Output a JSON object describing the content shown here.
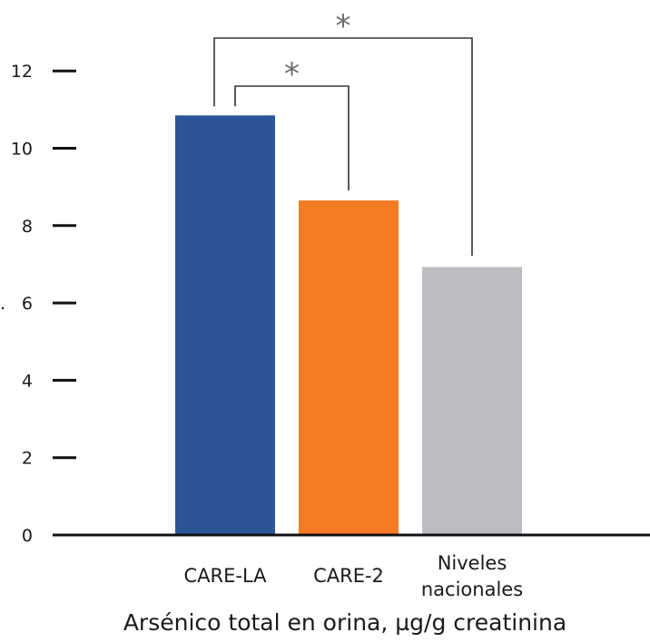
{
  "chart_data": {
    "type": "bar",
    "categories": [
      "CARE-LA",
      "CARE-2",
      "Niveles\nnacionales"
    ],
    "values": [
      10.85,
      8.65,
      6.93
    ],
    "colors": [
      "#2c5697",
      "#f47a23",
      "#bcbdc0"
    ],
    "xlabel": "Arsénico total en orina, µg/g creatinina",
    "ylabel": "",
    "ylim": [
      0,
      12
    ],
    "yticks": [
      0,
      2,
      4,
      6,
      8,
      10,
      12
    ],
    "grid": false,
    "significance": [
      {
        "from": 0,
        "to": 2,
        "label": "*"
      },
      {
        "from": 0,
        "to": 1,
        "label": "*"
      }
    ]
  }
}
